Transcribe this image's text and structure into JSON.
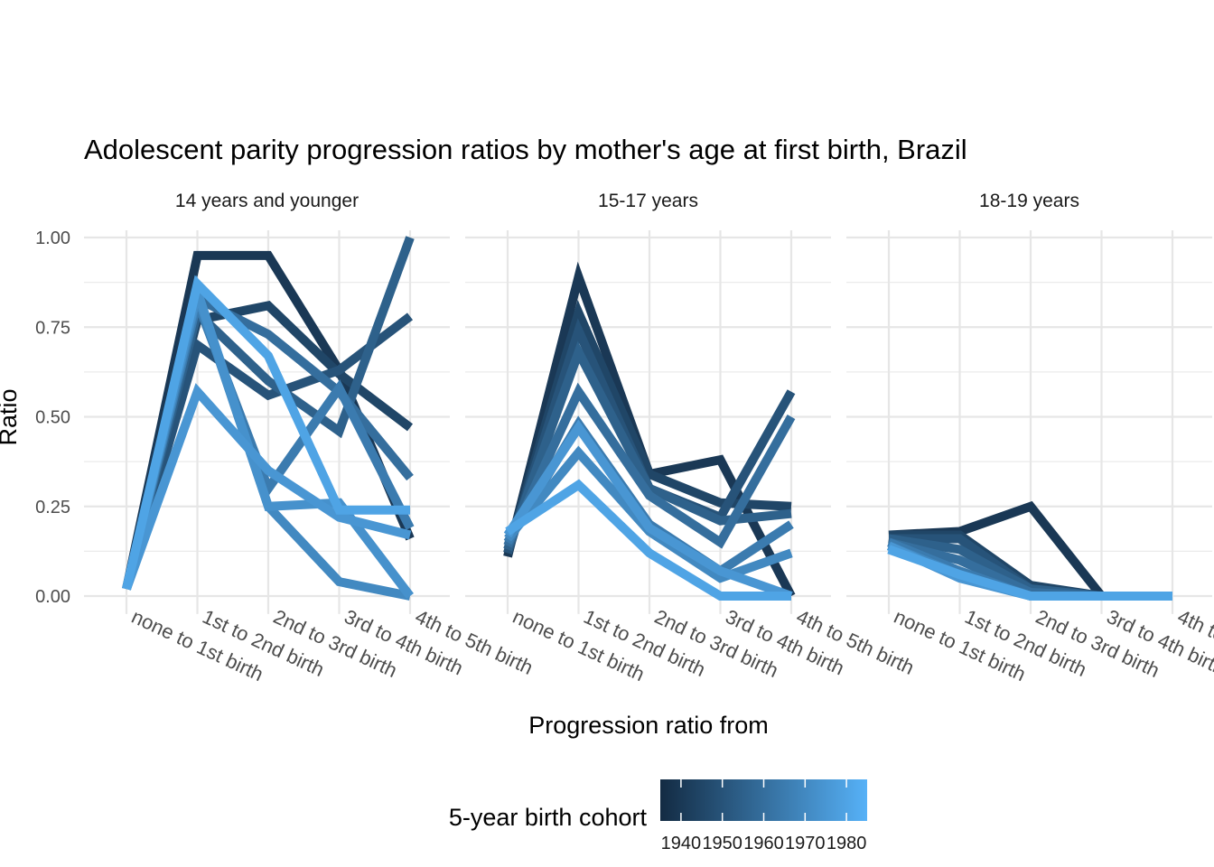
{
  "chart_data": {
    "type": "line",
    "title": "Adolescent parity progression ratios by mother's age at first birth,  Brazil",
    "xlabel": "Progression ratio from",
    "ylabel": "Ratio",
    "categories": [
      "none to 1st birth",
      "1st to 2nd birth",
      "2nd to 3rd birth",
      "3rd to 4th birth",
      "4th to 5th birth"
    ],
    "ylim": [
      -0.05,
      1.02
    ],
    "yticks": [
      0,
      0.25,
      0.5,
      0.75,
      1
    ],
    "ytick_labels": [
      "0.00",
      "0.25",
      "0.50",
      "0.75",
      "1.00"
    ],
    "grid": true,
    "legend": {
      "title": "5-year birth cohort",
      "position": "bottom",
      "type": "colorbar",
      "min": 1935,
      "max": 1985,
      "ticks": [
        1940,
        1950,
        1960,
        1970,
        1980
      ],
      "tick_labels": [
        "1940",
        "1950",
        "1960",
        "1970",
        "1980"
      ],
      "color_low": "#132B43",
      "color_high": "#56B1F7"
    },
    "facets": [
      {
        "label": "14 years and younger",
        "series": [
          {
            "cohort": 1940,
            "values": [
              0.02,
              0.95,
              0.95,
              0.63,
              0.16
            ]
          },
          {
            "cohort": 1945,
            "values": [
              0.02,
              0.77,
              0.81,
              0.62,
              0.47
            ]
          },
          {
            "cohort": 1950,
            "values": [
              0.02,
              0.7,
              0.56,
              0.63,
              0.78
            ]
          },
          {
            "cohort": 1955,
            "values": [
              0.02,
              0.79,
              0.6,
              0.46,
              1.0
            ]
          },
          {
            "cohort": 1960,
            "values": [
              0.02,
              0.83,
              0.73,
              0.57,
              0.33
            ]
          },
          {
            "cohort": 1965,
            "values": [
              0.02,
              0.82,
              0.3,
              0.58,
              0.19
            ]
          },
          {
            "cohort": 1970,
            "values": [
              0.02,
              0.84,
              0.25,
              0.04,
              0.0
            ]
          },
          {
            "cohort": 1973,
            "values": [
              0.02,
              0.85,
              0.25,
              0.26,
              0.0
            ]
          },
          {
            "cohort": 1975,
            "values": [
              0.02,
              0.57,
              0.35,
              0.22,
              0.17
            ]
          },
          {
            "cohort": 1980,
            "values": [
              0.02,
              0.87,
              0.67,
              0.24,
              0.24
            ]
          }
        ]
      },
      {
        "label": "15-17 years",
        "series": [
          {
            "cohort": 1940,
            "values": [
              0.11,
              0.89,
              0.34,
              0.38,
              0.0
            ]
          },
          {
            "cohort": 1945,
            "values": [
              0.12,
              0.79,
              0.34,
              0.26,
              0.25
            ]
          },
          {
            "cohort": 1950,
            "values": [
              0.12,
              0.74,
              0.3,
              0.22,
              0.57
            ]
          },
          {
            "cohort": 1955,
            "values": [
              0.13,
              0.68,
              0.3,
              0.21,
              0.23
            ]
          },
          {
            "cohort": 1960,
            "values": [
              0.14,
              0.57,
              0.28,
              0.15,
              0.5
            ]
          },
          {
            "cohort": 1965,
            "values": [
              0.15,
              0.48,
              0.2,
              0.07,
              0.2
            ]
          },
          {
            "cohort": 1970,
            "values": [
              0.16,
              0.4,
              0.18,
              0.05,
              0.12
            ]
          },
          {
            "cohort": 1975,
            "values": [
              0.17,
              0.47,
              0.19,
              0.07,
              0.0
            ]
          },
          {
            "cohort": 1980,
            "values": [
              0.18,
              0.31,
              0.12,
              0.0,
              0.0
            ]
          }
        ]
      },
      {
        "label": "18-19 years",
        "series": [
          {
            "cohort": 1940,
            "values": [
              0.17,
              0.18,
              0.25,
              0.0,
              0.0
            ]
          },
          {
            "cohort": 1945,
            "values": [
              0.17,
              0.17,
              0.03,
              0.0,
              0.0
            ]
          },
          {
            "cohort": 1950,
            "values": [
              0.16,
              0.16,
              0.02,
              0.0,
              0.0
            ]
          },
          {
            "cohort": 1955,
            "values": [
              0.16,
              0.13,
              0.02,
              0.0,
              0.0
            ]
          },
          {
            "cohort": 1960,
            "values": [
              0.15,
              0.1,
              0.01,
              0.0,
              0.0
            ]
          },
          {
            "cohort": 1965,
            "values": [
              0.15,
              0.07,
              0.0,
              0.0,
              0.0
            ]
          },
          {
            "cohort": 1970,
            "values": [
              0.14,
              0.06,
              0.0,
              0.0,
              0.0
            ]
          },
          {
            "cohort": 1975,
            "values": [
              0.14,
              0.05,
              0.0,
              0.0,
              0.0
            ]
          },
          {
            "cohort": 1980,
            "values": [
              0.13,
              0.06,
              0.0,
              0.0,
              0.0
            ]
          }
        ]
      }
    ]
  }
}
